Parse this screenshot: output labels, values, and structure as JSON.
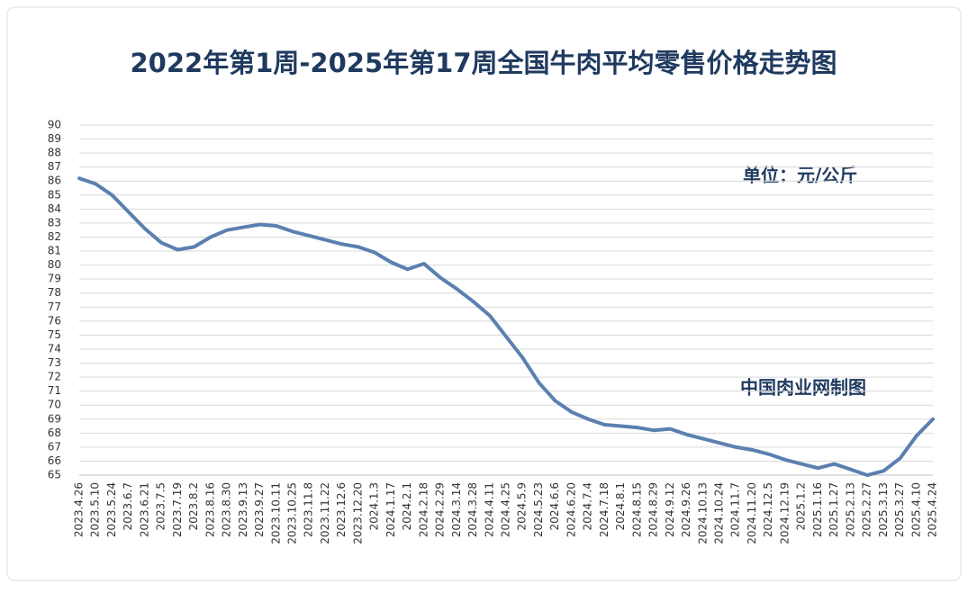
{
  "chart_data": {
    "type": "line",
    "title": "2022年第1周-2025年第17周全国牛肉平均零售价格走势图",
    "unit_label": "单位：元/公斤",
    "source": "中国肉业网制图",
    "categories": [
      "2023.4.26",
      "2023.5.10",
      "2023.5.24",
      "2023.6.7",
      "2023.6.21",
      "2023.7.5",
      "2023.7.19",
      "2023.8.2",
      "2023.8.16",
      "2023.8.30",
      "2023.9.13",
      "2023.9.27",
      "2023.10.11",
      "2023.10.25",
      "2023.11.8",
      "2023.11.22",
      "2023.12.6",
      "2023.12.20",
      "2024.1.3",
      "2024.1.17",
      "2024.2.1",
      "2024.2.18",
      "2024.2.29",
      "2024.3.14",
      "2024.3.28",
      "2024.4.11",
      "2024.4.25",
      "2024.5.9",
      "2024.5.23",
      "2024.6.6",
      "2024.6.20",
      "2024.7.4",
      "2024.7.18",
      "2024.8.1",
      "2024.8.15",
      "2024.8.29",
      "2024.9.12",
      "2024.9.26",
      "2024.10.13",
      "2024.10.24",
      "2024.11.7",
      "2024.11.20",
      "2024.12.5",
      "2024.12.19",
      "2025.1.2",
      "2025.1.16",
      "2025.1.27",
      "2025.2.13",
      "2025.2.27",
      "2025.3.13",
      "2025.3.27",
      "2025.4.10",
      "2025.4.24"
    ],
    "series": [
      {
        "name": "全国牛肉平均零售价格",
        "color": "#5b80b0",
        "values": [
          86.2,
          85.8,
          85.0,
          83.8,
          82.6,
          81.6,
          81.1,
          81.3,
          82.0,
          82.5,
          82.7,
          82.9,
          82.8,
          82.4,
          82.1,
          81.8,
          81.5,
          81.3,
          80.9,
          80.2,
          79.7,
          80.1,
          79.1,
          78.3,
          77.4,
          76.4,
          74.9,
          73.4,
          71.6,
          70.3,
          69.5,
          69.0,
          68.6,
          68.5,
          68.4,
          68.2,
          68.3,
          67.9,
          67.6,
          67.3,
          67.0,
          66.8,
          66.5,
          66.1,
          65.8,
          65.5,
          65.8,
          65.4,
          65.0,
          65.3,
          66.2,
          67.8,
          69.0
        ]
      }
    ],
    "ylim": [
      65,
      90
    ],
    "yticks": [
      65,
      66,
      67,
      68,
      69,
      70,
      71,
      72,
      73,
      74,
      75,
      76,
      77,
      78,
      79,
      80,
      81,
      82,
      83,
      84,
      85,
      86,
      87,
      88,
      89,
      90
    ],
    "grid": true
  }
}
